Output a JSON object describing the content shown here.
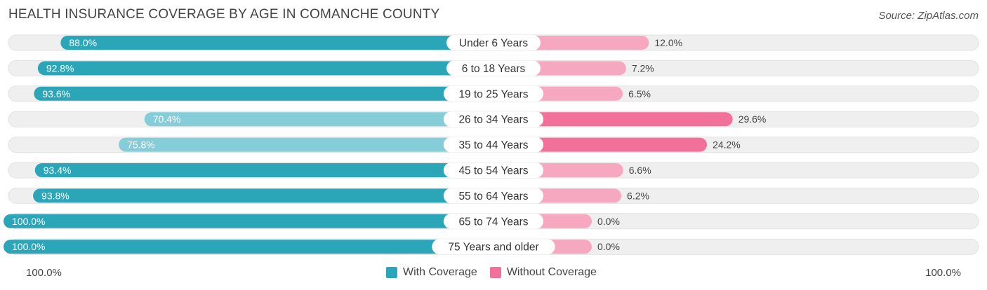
{
  "header": {
    "title": "HEALTH INSURANCE COVERAGE BY AGE IN COMANCHE COUNTY",
    "source": "Source: ZipAtlas.com"
  },
  "colors": {
    "with_strong": "#2aa6b8",
    "with_light": "#85cdd8",
    "without_strong": "#f2719a",
    "without_light": "#f7a8c1",
    "track": "#efefef"
  },
  "chart_data": {
    "type": "bar",
    "orientation": "horizontal-diverging",
    "title": "HEALTH INSURANCE COVERAGE BY AGE IN COMANCHE COUNTY",
    "categories": [
      "Under 6 Years",
      "6 to 18 Years",
      "19 to 25 Years",
      "26 to 34 Years",
      "35 to 44 Years",
      "45 to 54 Years",
      "55 to 64 Years",
      "65 to 74 Years",
      "75 Years and older"
    ],
    "series": [
      {
        "name": "With Coverage",
        "values": [
          88.0,
          92.8,
          93.6,
          70.4,
          75.8,
          93.4,
          93.8,
          100.0,
          100.0
        ],
        "labels": [
          "88.0%",
          "92.8%",
          "93.6%",
          "70.4%",
          "75.8%",
          "93.4%",
          "93.8%",
          "100.0%",
          "100.0%"
        ]
      },
      {
        "name": "Without Coverage",
        "values": [
          12.0,
          7.2,
          6.5,
          29.6,
          24.2,
          6.6,
          6.2,
          0.0,
          0.0
        ],
        "labels": [
          "12.0%",
          "7.2%",
          "6.5%",
          "29.6%",
          "24.2%",
          "6.6%",
          "6.2%",
          "0.0%",
          "0.0%"
        ]
      }
    ],
    "axis": {
      "left_label": "100.0%",
      "right_label": "100.0%",
      "range": [
        0,
        100
      ]
    },
    "legend": {
      "position": "bottom-center",
      "items": [
        "With Coverage",
        "Without Coverage"
      ]
    }
  }
}
